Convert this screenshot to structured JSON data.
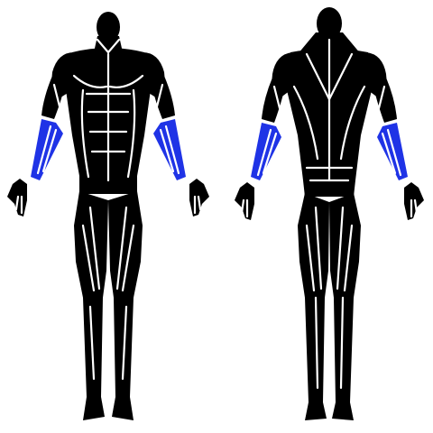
{
  "figure": {
    "views": [
      {
        "key": "front",
        "name": "front-view"
      },
      {
        "key": "back",
        "name": "back-view"
      }
    ],
    "highlighted_muscle_group": "forearms",
    "colors": {
      "background": "#ffffff",
      "muscle": "#000000",
      "separator": "#ffffff",
      "highlight": "#1f33e6"
    }
  }
}
